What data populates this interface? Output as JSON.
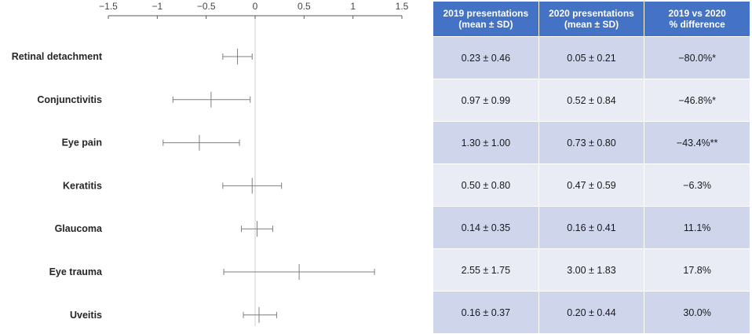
{
  "chart_data": {
    "type": "forest",
    "xlim": [
      -1.5,
      1.5
    ],
    "x_ticks": [
      -1.5,
      -1,
      -0.5,
      0,
      0.5,
      1,
      1.5
    ],
    "x_tick_labels": [
      "−1.5",
      "−1",
      "−0.5",
      "0",
      "0.5",
      "1",
      "1.5"
    ],
    "reference_line": 0,
    "categories": [
      "Retinal detachment",
      "Conjunctivitis",
      "Eye pain",
      "Keratitis",
      "Glaucoma",
      "Eye trauma",
      "Uveitis"
    ],
    "estimates": [
      -0.18,
      -0.45,
      -0.57,
      -0.03,
      0.02,
      0.45,
      0.04
    ],
    "ci_low": [
      -0.33,
      -0.84,
      -0.94,
      -0.33,
      -0.14,
      -0.32,
      -0.12
    ],
    "ci_high": [
      -0.03,
      -0.05,
      -0.16,
      0.27,
      0.18,
      1.22,
      0.22
    ]
  },
  "table": {
    "headers": [
      [
        "2019 presentations",
        "(mean ± SD)"
      ],
      [
        "2020 presentations",
        "(mean ± SD)"
      ],
      [
        "2019 vs 2020",
        "% difference"
      ]
    ],
    "rows": [
      [
        "0.23 ± 0.46",
        "0.05 ± 0.21",
        "−80.0%*"
      ],
      [
        "0.97 ± 0.99",
        "0.52 ± 0.84",
        "−46.8%*"
      ],
      [
        "1.30 ± 1.00",
        "0.73 ± 0.80",
        "−43.4%**"
      ],
      [
        "0.50 ± 0.80",
        "0.47 ± 0.59",
        "−6.3%"
      ],
      [
        "0.14 ± 0.35",
        "0.16 ± 0.41",
        "11.1%"
      ],
      [
        "2.55 ± 1.75",
        "3.00 ± 1.83",
        "17.8%"
      ],
      [
        "0.16 ± 0.37",
        "0.20 ± 0.44",
        "30.0%"
      ]
    ]
  },
  "colors": {
    "header_bg": "#4472c4",
    "row_odd": "#cfd5ea",
    "row_even": "#e9ebf5",
    "whisker": "#7f7f7f",
    "reference": "#d9d9d9"
  }
}
